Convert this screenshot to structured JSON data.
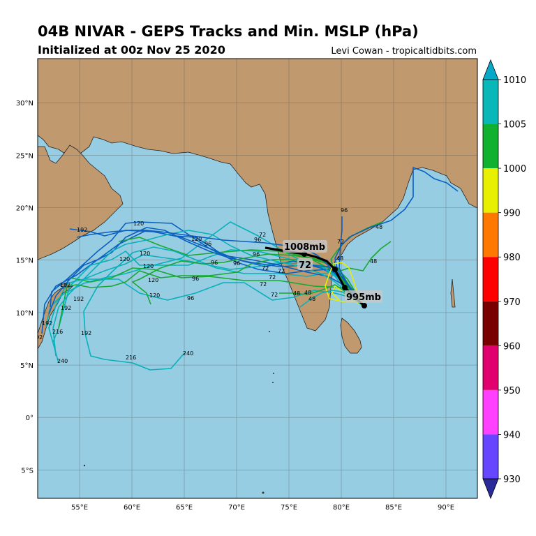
{
  "header": {
    "title": "04B NIVAR - GEPS Tracks and Min. MSLP (hPa)",
    "subtitle": "Initialized at 00z Nov 25 2020",
    "credit": "Levi Cowan - tropicaltidbits.com"
  },
  "map": {
    "lon_range": [
      51,
      93
    ],
    "lat_range": [
      -7.7,
      34.2
    ],
    "lon_ticks": [
      "55°E",
      "60°E",
      "65°E",
      "70°E",
      "75°E",
      "80°E",
      "85°E",
      "90°E"
    ],
    "lat_ticks": [
      "30°N",
      "25°N",
      "20°N",
      "15°N",
      "10°N",
      "5°N",
      "0°",
      "5°S"
    ],
    "colors": {
      "ocean": "#97cde3",
      "land": "#c09a6e",
      "grid": "#555555"
    },
    "callouts": {
      "start_mslp": "1008mb",
      "end_mslp": "995mb",
      "end_hour": "72"
    },
    "hour_labels": [
      "72",
      "72",
      "72",
      "72",
      "72",
      "72",
      "72",
      "48",
      "48",
      "48",
      "48",
      "48",
      "48",
      "96",
      "96",
      "96",
      "96",
      "96",
      "96",
      "96",
      "96",
      "120",
      "120",
      "120",
      "120",
      "120",
      "120",
      "120",
      "192",
      "192",
      "192",
      "192",
      "192",
      "192",
      "192",
      "216",
      "216",
      "240",
      "240",
      "240"
    ],
    "mean_track": "black"
  },
  "colorbar": {
    "ticks": [
      "1010",
      "1005",
      "1000",
      "990",
      "980",
      "970",
      "960",
      "950",
      "940",
      "930"
    ],
    "colors": [
      "#08a8c8",
      "#08b8b8",
      "#10b030",
      "#e8f000",
      "#ff7800",
      "#ff0000",
      "#780000",
      "#e0006e",
      "#ff40ff",
      "#6646ff",
      "#2a2a9a"
    ]
  }
}
